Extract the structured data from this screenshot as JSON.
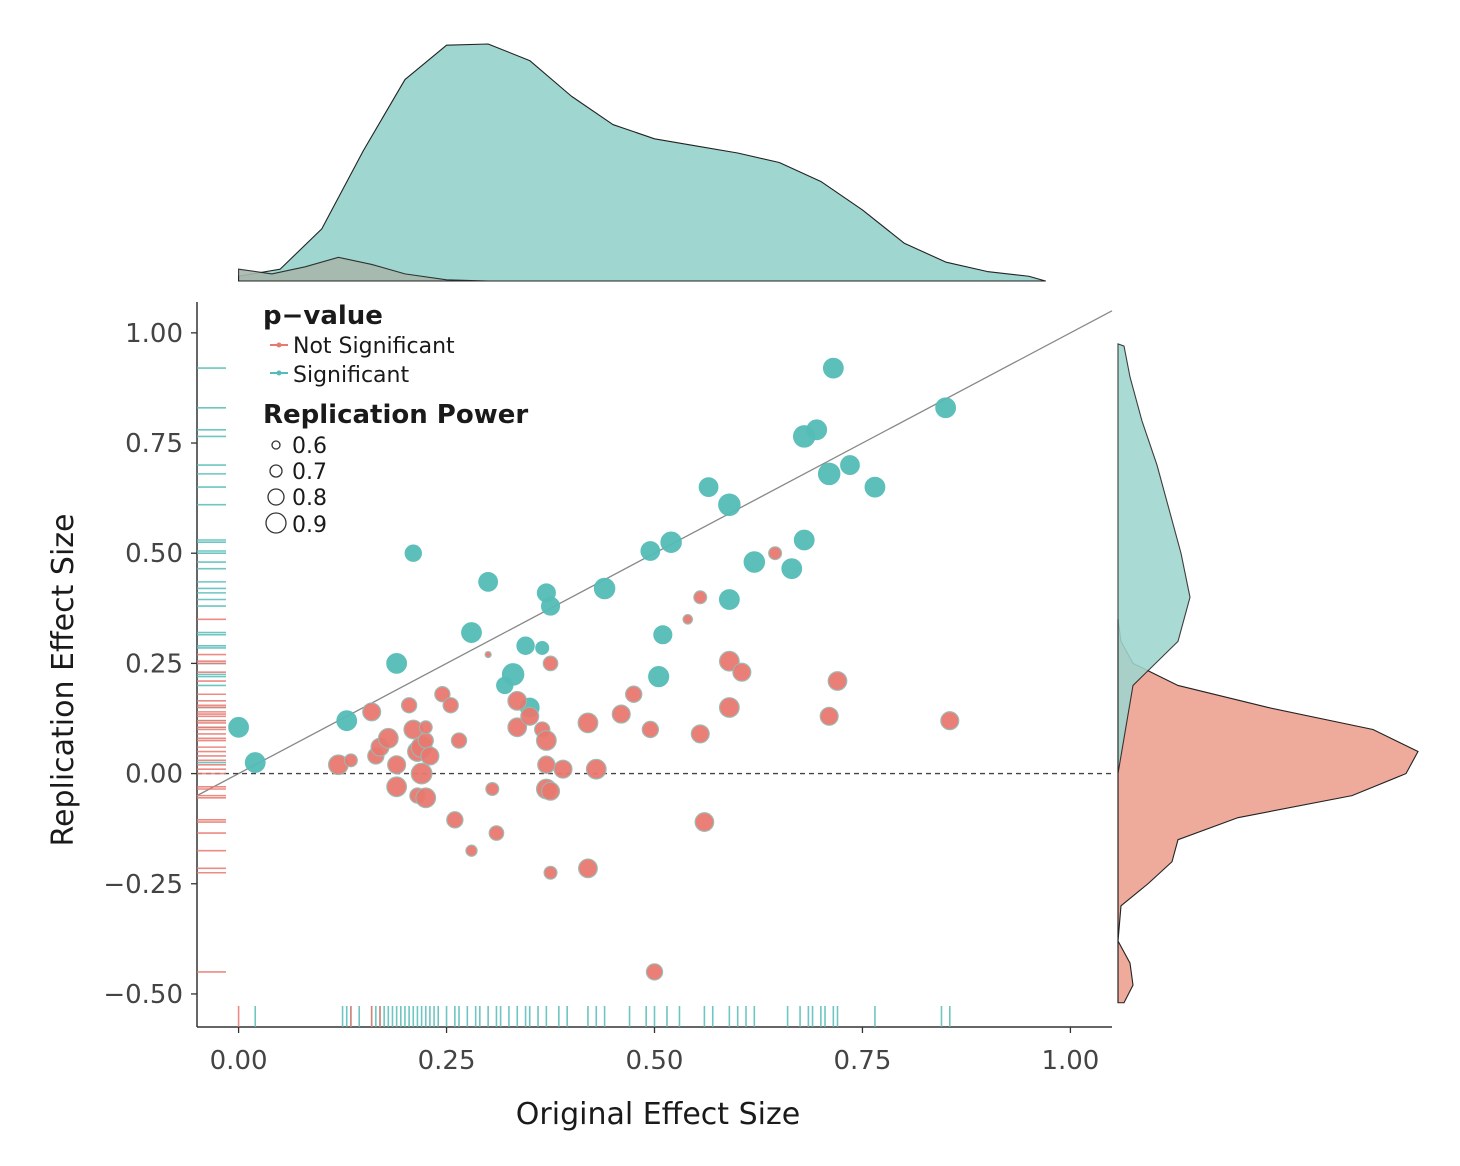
{
  "chart_data": {
    "type": "scatter",
    "title": "",
    "xlabel": "Original Effect Size",
    "ylabel": "Replication Effect Size",
    "xlim": [
      -0.05,
      1.05
    ],
    "ylim": [
      -0.575,
      1.07
    ],
    "x_ticks": [
      "0.00",
      "0.25",
      "0.50",
      "0.75",
      "1.00"
    ],
    "y_ticks": [
      "1.00",
      "0.75",
      "0.50",
      "0.25",
      "0.00",
      "−0.25",
      "−0.50"
    ],
    "reference_lines": {
      "diagonal": "y = x",
      "horizontal_dashed": 0
    },
    "colors": {
      "Not Significant": "#e8796f",
      "Significant": "#55bcb7",
      "density_significant": "#9fd6cf",
      "density_not_significant": "#eeaa9b",
      "overlap": "#a8b7ad"
    },
    "legend": {
      "color_title": "p−value",
      "color_items": [
        "Not Significant",
        "Significant"
      ],
      "size_title": "Replication Power",
      "size_items": [
        "0.6",
        "0.7",
        "0.8",
        "0.9"
      ],
      "placement": "top-left"
    },
    "series": [
      {
        "name": "Significant",
        "points": [
          [
            0.0,
            0.105,
            0.85
          ],
          [
            0.02,
            0.025,
            0.85
          ],
          [
            0.13,
            0.12,
            0.85
          ],
          [
            0.19,
            0.25,
            0.85
          ],
          [
            0.21,
            0.5,
            0.75
          ],
          [
            0.28,
            0.32,
            0.85
          ],
          [
            0.3,
            0.435,
            0.82
          ],
          [
            0.32,
            0.2,
            0.75
          ],
          [
            0.33,
            0.225,
            0.9
          ],
          [
            0.345,
            0.29,
            0.78
          ],
          [
            0.35,
            0.15,
            0.82
          ],
          [
            0.365,
            0.285,
            0.65
          ],
          [
            0.37,
            0.41,
            0.8
          ],
          [
            0.375,
            0.38,
            0.8
          ],
          [
            0.44,
            0.42,
            0.87
          ],
          [
            0.495,
            0.505,
            0.82
          ],
          [
            0.505,
            0.22,
            0.86
          ],
          [
            0.51,
            0.315,
            0.8
          ],
          [
            0.52,
            0.525,
            0.87
          ],
          [
            0.565,
            0.65,
            0.82
          ],
          [
            0.59,
            0.61,
            0.9
          ],
          [
            0.59,
            0.395,
            0.85
          ],
          [
            0.62,
            0.48,
            0.87
          ],
          [
            0.665,
            0.465,
            0.85
          ],
          [
            0.68,
            0.765,
            0.9
          ],
          [
            0.68,
            0.53,
            0.85
          ],
          [
            0.695,
            0.78,
            0.85
          ],
          [
            0.71,
            0.68,
            0.9
          ],
          [
            0.715,
            0.92,
            0.85
          ],
          [
            0.735,
            0.7,
            0.82
          ],
          [
            0.765,
            0.65,
            0.85
          ],
          [
            0.85,
            0.83,
            0.85
          ]
        ]
      },
      {
        "name": "Not Significant",
        "points": [
          [
            0.16,
            0.14,
            0.8
          ],
          [
            0.12,
            0.02,
            0.85
          ],
          [
            0.135,
            0.03,
            0.65
          ],
          [
            0.165,
            0.04,
            0.75
          ],
          [
            0.17,
            0.06,
            0.8
          ],
          [
            0.18,
            0.08,
            0.85
          ],
          [
            0.19,
            0.02,
            0.8
          ],
          [
            0.19,
            -0.03,
            0.85
          ],
          [
            0.205,
            0.155,
            0.72
          ],
          [
            0.21,
            0.1,
            0.82
          ],
          [
            0.215,
            0.05,
            0.85
          ],
          [
            0.22,
            0.06,
            0.88
          ],
          [
            0.225,
            0.075,
            0.72
          ],
          [
            0.225,
            0.105,
            0.65
          ],
          [
            0.23,
            0.04,
            0.8
          ],
          [
            0.22,
            0.0,
            0.88
          ],
          [
            0.215,
            -0.05,
            0.72
          ],
          [
            0.225,
            -0.055,
            0.85
          ],
          [
            0.245,
            0.18,
            0.72
          ],
          [
            0.255,
            0.155,
            0.72
          ],
          [
            0.265,
            0.075,
            0.72
          ],
          [
            0.26,
            -0.105,
            0.75
          ],
          [
            0.28,
            -0.175,
            0.6
          ],
          [
            0.305,
            -0.035,
            0.65
          ],
          [
            0.31,
            -0.135,
            0.7
          ],
          [
            0.335,
            0.165,
            0.82
          ],
          [
            0.335,
            0.105,
            0.82
          ],
          [
            0.35,
            0.13,
            0.8
          ],
          [
            0.365,
            0.1,
            0.72
          ],
          [
            0.37,
            0.075,
            0.85
          ],
          [
            0.375,
            0.25,
            0.7
          ],
          [
            0.37,
            0.02,
            0.78
          ],
          [
            0.37,
            -0.035,
            0.85
          ],
          [
            0.375,
            -0.04,
            0.8
          ],
          [
            0.39,
            0.01,
            0.8
          ],
          [
            0.375,
            -0.225,
            0.65
          ],
          [
            0.42,
            0.115,
            0.85
          ],
          [
            0.43,
            0.01,
            0.85
          ],
          [
            0.42,
            -0.215,
            0.82
          ],
          [
            0.46,
            0.135,
            0.8
          ],
          [
            0.475,
            0.18,
            0.75
          ],
          [
            0.495,
            0.1,
            0.75
          ],
          [
            0.5,
            -0.45,
            0.75
          ],
          [
            0.54,
            0.35,
            0.55
          ],
          [
            0.555,
            0.4,
            0.65
          ],
          [
            0.555,
            0.09,
            0.8
          ],
          [
            0.56,
            -0.11,
            0.82
          ],
          [
            0.59,
            0.255,
            0.85
          ],
          [
            0.59,
            0.15,
            0.85
          ],
          [
            0.605,
            0.23,
            0.8
          ],
          [
            0.645,
            0.5,
            0.65
          ],
          [
            0.71,
            0.13,
            0.8
          ],
          [
            0.72,
            0.21,
            0.82
          ],
          [
            0.855,
            0.12,
            0.8
          ],
          [
            0.3,
            0.27,
            0.45
          ]
        ]
      }
    ],
    "rug_x_significant": [
      0.02,
      0.125,
      0.13,
      0.135,
      0.145,
      0.16,
      0.165,
      0.17,
      0.175,
      0.18,
      0.185,
      0.19,
      0.195,
      0.2,
      0.205,
      0.21,
      0.215,
      0.22,
      0.225,
      0.23,
      0.235,
      0.24,
      0.25,
      0.26,
      0.265,
      0.275,
      0.285,
      0.29,
      0.3,
      0.31,
      0.315,
      0.325,
      0.335,
      0.345,
      0.35,
      0.36,
      0.37,
      0.385,
      0.395,
      0.42,
      0.43,
      0.44,
      0.47,
      0.49,
      0.5,
      0.515,
      0.53,
      0.56,
      0.57,
      0.59,
      0.6,
      0.61,
      0.62,
      0.66,
      0.675,
      0.685,
      0.69,
      0.7,
      0.705,
      0.715,
      0.72,
      0.765,
      0.845,
      0.855
    ],
    "rug_x_not_significant": [
      0.0,
      0.135,
      0.16,
      0.17
    ],
    "rug_y_significant": [
      0.92,
      0.83,
      0.78,
      0.765,
      0.7,
      0.68,
      0.65,
      0.61,
      0.53,
      0.525,
      0.505,
      0.5,
      0.48,
      0.465,
      0.435,
      0.42,
      0.41,
      0.395,
      0.38,
      0.32,
      0.315,
      0.29,
      0.285,
      0.25,
      0.225,
      0.22,
      0.2,
      0.15,
      0.12,
      0.105,
      0.025
    ],
    "rug_y_not_significant": [
      0.35,
      0.27,
      0.255,
      0.25,
      0.23,
      0.21,
      0.18,
      0.165,
      0.155,
      0.15,
      0.14,
      0.135,
      0.13,
      0.12,
      0.115,
      0.105,
      0.1,
      0.09,
      0.08,
      0.075,
      0.06,
      0.05,
      0.04,
      0.03,
      0.02,
      0.01,
      0.0,
      -0.03,
      -0.035,
      -0.05,
      -0.055,
      -0.105,
      -0.11,
      -0.135,
      -0.175,
      -0.215,
      -0.225,
      -0.45
    ],
    "density_x": {
      "Significant": [
        [
          0.0,
          0.02
        ],
        [
          0.05,
          0.05
        ],
        [
          0.1,
          0.22
        ],
        [
          0.15,
          0.55
        ],
        [
          0.2,
          0.85
        ],
        [
          0.25,
          0.995
        ],
        [
          0.3,
          1.0
        ],
        [
          0.35,
          0.93
        ],
        [
          0.4,
          0.78
        ],
        [
          0.45,
          0.66
        ],
        [
          0.5,
          0.6
        ],
        [
          0.55,
          0.57
        ],
        [
          0.6,
          0.54
        ],
        [
          0.65,
          0.5
        ],
        [
          0.7,
          0.42
        ],
        [
          0.75,
          0.3
        ],
        [
          0.8,
          0.16
        ],
        [
          0.85,
          0.08
        ],
        [
          0.9,
          0.04
        ],
        [
          0.95,
          0.02
        ],
        [
          0.97,
          0.0
        ]
      ],
      "Not Significant": [
        [
          0.0,
          0.05
        ],
        [
          0.04,
          0.03
        ],
        [
          0.08,
          0.06
        ],
        [
          0.12,
          0.1
        ],
        [
          0.16,
          0.07
        ],
        [
          0.2,
          0.03
        ],
        [
          0.25,
          0.005
        ],
        [
          0.3,
          0.0
        ]
      ]
    },
    "density_y": {
      "Significant": [
        [
          -0.52,
          0.0
        ],
        [
          0.0,
          0.0
        ],
        [
          0.2,
          0.05
        ],
        [
          0.3,
          0.2
        ],
        [
          0.4,
          0.24
        ],
        [
          0.5,
          0.21
        ],
        [
          0.6,
          0.17
        ],
        [
          0.7,
          0.13
        ],
        [
          0.8,
          0.08
        ],
        [
          0.9,
          0.04
        ],
        [
          0.97,
          0.02
        ],
        [
          0.975,
          0.0
        ]
      ],
      "Not Significant": [
        [
          -0.52,
          0.02
        ],
        [
          -0.48,
          0.05
        ],
        [
          -0.43,
          0.04
        ],
        [
          -0.38,
          0.0
        ],
        [
          -0.3,
          0.01
        ],
        [
          -0.25,
          0.1
        ],
        [
          -0.2,
          0.18
        ],
        [
          -0.15,
          0.2
        ],
        [
          -0.1,
          0.4
        ],
        [
          -0.05,
          0.78
        ],
        [
          0.0,
          0.96
        ],
        [
          0.05,
          1.0
        ],
        [
          0.1,
          0.85
        ],
        [
          0.15,
          0.5
        ],
        [
          0.2,
          0.2
        ],
        [
          0.25,
          0.05
        ],
        [
          0.3,
          0.01
        ],
        [
          0.35,
          0.0
        ]
      ]
    }
  }
}
